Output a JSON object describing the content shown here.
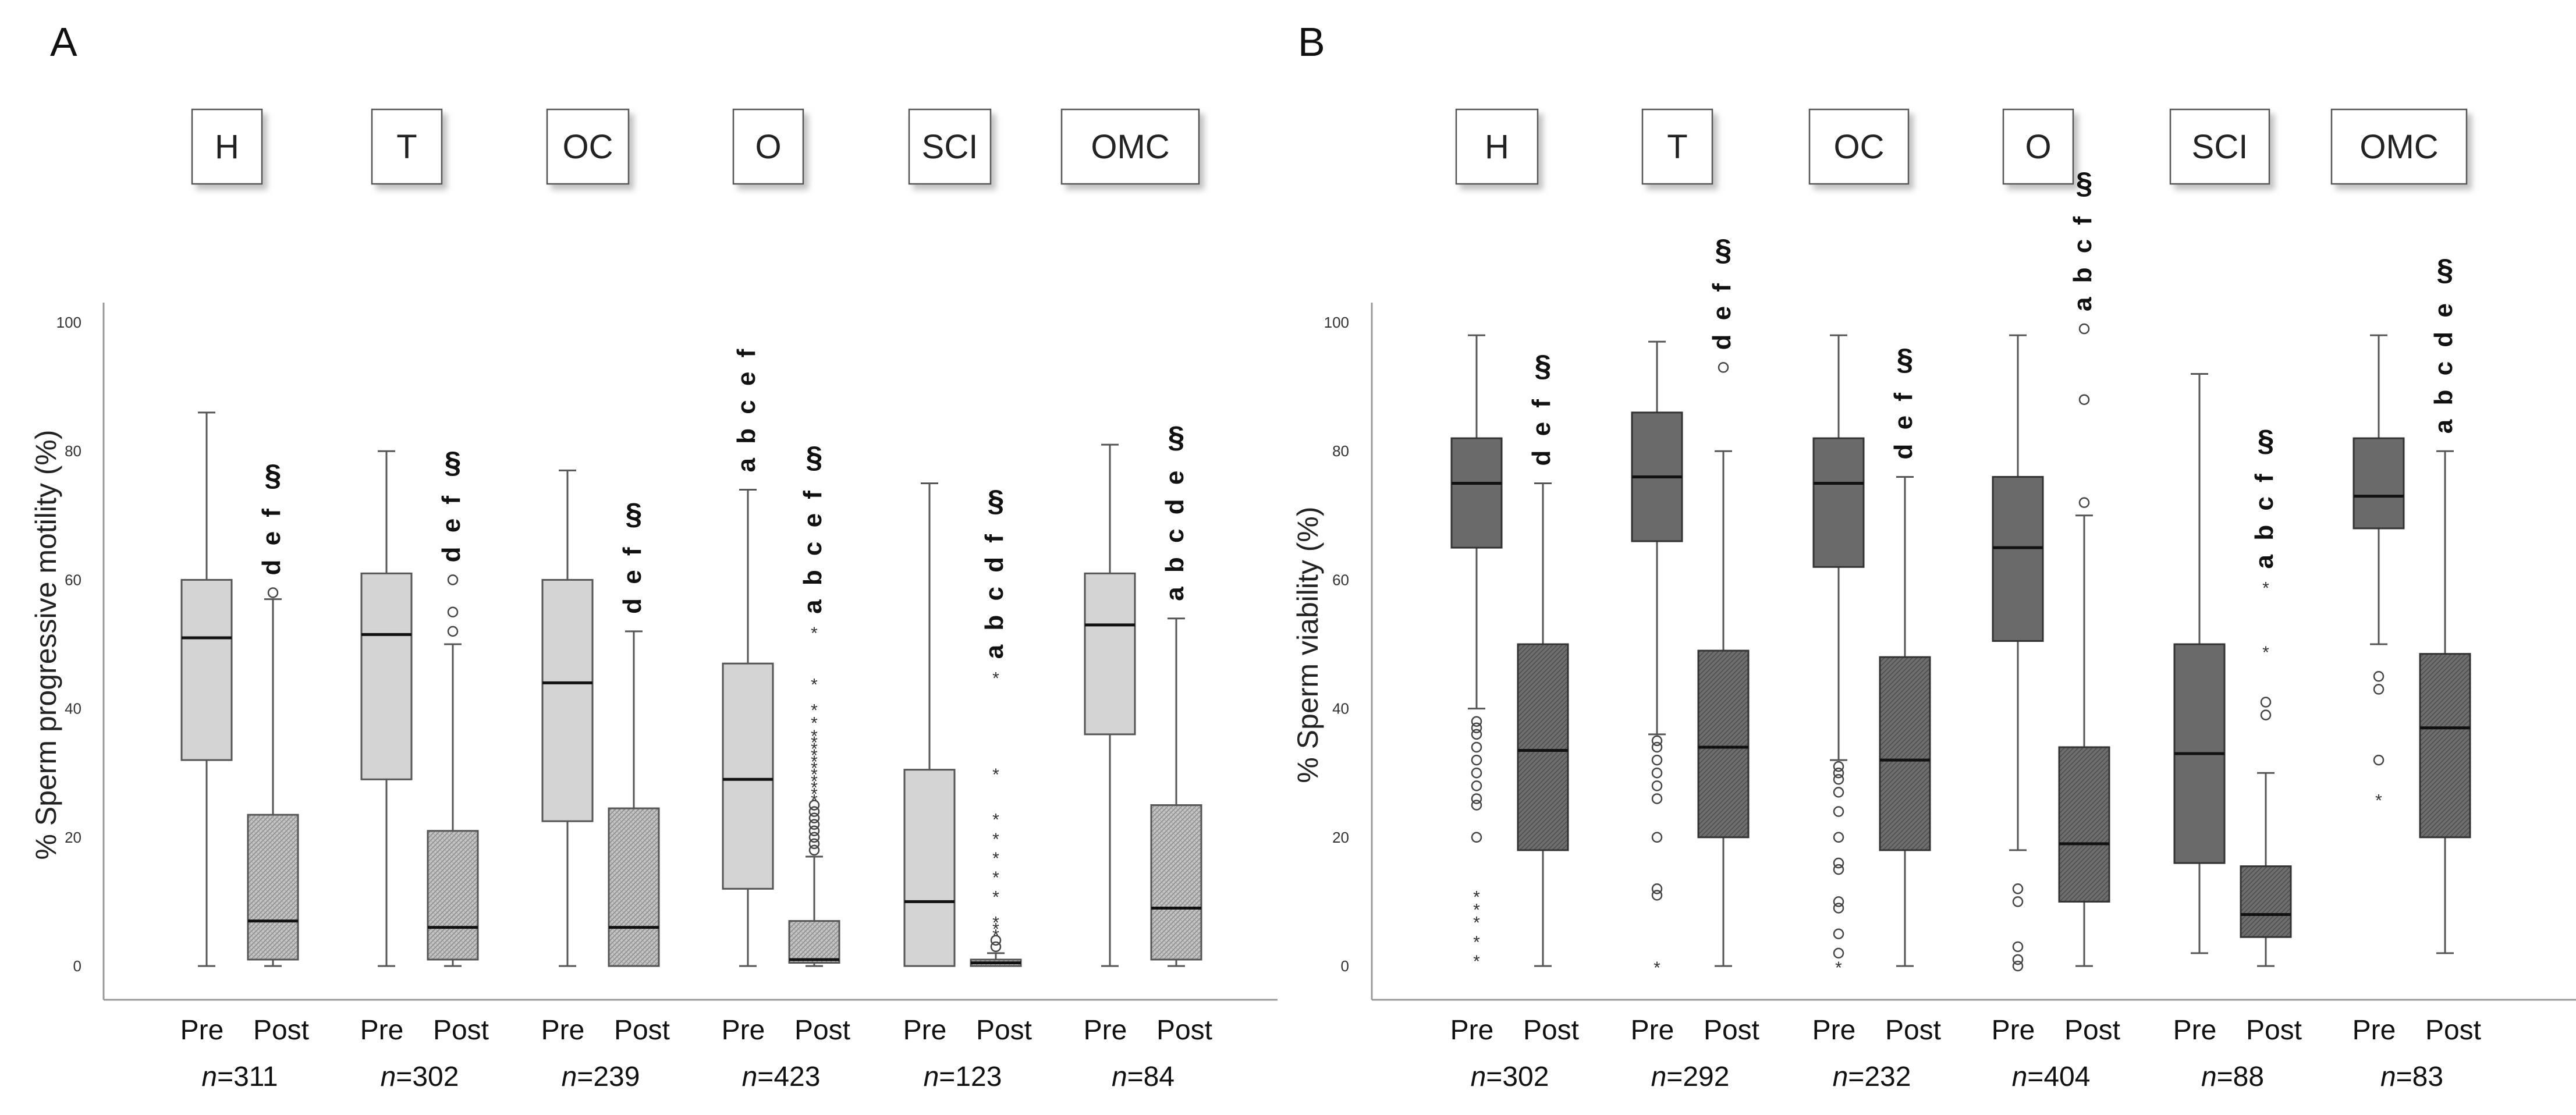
{
  "chart_data": [
    {
      "panel_label": "A",
      "type": "box",
      "ylabel": "% Sperm progressive motility (%)",
      "ylim": [
        0,
        100
      ],
      "yticks": [
        "0",
        "20",
        "40",
        "60",
        "80",
        "100"
      ],
      "phase_labels": [
        "Pre",
        "Post"
      ],
      "fill_colors": {
        "pre": "#d4d4d4",
        "post": "#c2c2c2"
      },
      "groups": [
        {
          "name": "H",
          "n_label": "n=311",
          "pre": {
            "whisker_low": 0,
            "q1": 32,
            "median": 51,
            "q3": 60,
            "whisker_high": 86,
            "outliers_circle": [],
            "outliers_star": []
          },
          "post": {
            "whisker_low": 0,
            "q1": 1,
            "median": 7,
            "q3": 23.5,
            "whisker_high": 57,
            "outliers_circle": [
              58
            ],
            "outliers_star": []
          },
          "post_sig_letters": "d e f",
          "post_sig_symbol": "§"
        },
        {
          "name": "T",
          "n_label": "n=302",
          "pre": {
            "whisker_low": 0,
            "q1": 29,
            "median": 51.5,
            "q3": 61,
            "whisker_high": 80,
            "outliers_circle": [],
            "outliers_star": []
          },
          "post": {
            "whisker_low": 0,
            "q1": 1,
            "median": 6,
            "q3": 21,
            "whisker_high": 50,
            "outliers_circle": [
              52,
              55,
              60
            ],
            "outliers_star": []
          },
          "post_sig_letters": "d e f",
          "post_sig_symbol": "§"
        },
        {
          "name": "OC",
          "n_label": "n=239",
          "pre": {
            "whisker_low": 0,
            "q1": 22.5,
            "median": 44,
            "q3": 60,
            "whisker_high": 77,
            "outliers_circle": [],
            "outliers_star": []
          },
          "post": {
            "whisker_low": 0,
            "q1": 0,
            "median": 6,
            "q3": 24.5,
            "whisker_high": 52,
            "outliers_circle": [],
            "outliers_star": []
          },
          "post_sig_letters": "d e f",
          "post_sig_symbol": "§"
        },
        {
          "name": "O",
          "n_label": "n=423",
          "pre": {
            "whisker_low": 0,
            "q1": 12,
            "median": 29,
            "q3": 47,
            "whisker_high": 74,
            "outliers_circle": [],
            "outliers_star": []
          },
          "post": {
            "whisker_low": 0,
            "q1": 0.5,
            "median": 1,
            "q3": 7,
            "whisker_high": 17,
            "outliers_circle": [
              18,
              19,
              20,
              21,
              22,
              23,
              24,
              25
            ],
            "outliers_star": [
              26,
              27,
              28,
              29,
              30,
              31,
              32,
              33,
              34,
              35,
              36,
              38,
              40,
              44,
              52
            ]
          },
          "pre_sig_letters": "a b c e f",
          "post_sig_letters": "a b c e f",
          "post_sig_symbol": "§"
        },
        {
          "name": "SCI",
          "n_label": "n=123",
          "pre": {
            "whisker_low": 0,
            "q1": 0,
            "median": 10,
            "q3": 30.5,
            "whisker_high": 75,
            "outliers_circle": [],
            "outliers_star": []
          },
          "post": {
            "whisker_low": 0,
            "q1": 0,
            "median": 0.5,
            "q3": 1,
            "whisker_high": 2,
            "outliers_circle": [
              3,
              4
            ],
            "outliers_star": [
              5,
              6,
              7,
              11,
              14,
              17,
              20,
              23,
              30,
              45
            ]
          },
          "post_sig_letters": "a b c d f",
          "post_sig_symbol": "§"
        },
        {
          "name": "OMC",
          "n_label": "n=84",
          "pre": {
            "whisker_low": 0,
            "q1": 36,
            "median": 53,
            "q3": 61,
            "whisker_high": 81,
            "outliers_circle": [],
            "outliers_star": []
          },
          "post": {
            "whisker_low": 0,
            "q1": 1,
            "median": 9,
            "q3": 25,
            "whisker_high": 54,
            "outliers_circle": [],
            "outliers_star": []
          },
          "post_sig_letters": "a b c d e",
          "post_sig_symbol": "§"
        }
      ]
    },
    {
      "panel_label": "B",
      "type": "box",
      "ylabel": "% Sperm viability (%)",
      "ylim": [
        0,
        100
      ],
      "yticks": [
        "0",
        "20",
        "40",
        "60",
        "80",
        "100"
      ],
      "phase_labels": [
        "Pre",
        "Post"
      ],
      "fill_colors": {
        "pre": "#6a6a6a",
        "post": "#6f6f6f"
      },
      "groups": [
        {
          "name": "H",
          "n_label": "n=302",
          "pre": {
            "whisker_low": 40,
            "q1": 65,
            "median": 75,
            "q3": 82,
            "whisker_high": 98,
            "outliers_circle": [
              20,
              25,
              26,
              28,
              30,
              32,
              34,
              36,
              37,
              38
            ],
            "outliers_star": [
              1,
              4,
              7,
              9,
              11
            ]
          },
          "post": {
            "whisker_low": 0,
            "q1": 18,
            "median": 33.5,
            "q3": 50,
            "whisker_high": 75,
            "outliers_circle": [],
            "outliers_star": []
          },
          "post_sig_letters": "d e f",
          "post_sig_symbol": "§"
        },
        {
          "name": "T",
          "n_label": "n=292",
          "pre": {
            "whisker_low": 36,
            "q1": 66,
            "median": 76,
            "q3": 86,
            "whisker_high": 97,
            "outliers_circle": [
              11,
              12,
              20,
              26,
              28,
              30,
              32,
              34,
              35
            ],
            "outliers_star": [
              0
            ]
          },
          "post": {
            "whisker_low": 0,
            "q1": 20,
            "median": 34,
            "q3": 49,
            "whisker_high": 80,
            "outliers_circle": [
              93
            ],
            "outliers_star": []
          },
          "post_sig_letters": "d e f",
          "post_sig_symbol": "§"
        },
        {
          "name": "OC",
          "n_label": "n=232",
          "pre": {
            "whisker_low": 32,
            "q1": 62,
            "median": 75,
            "q3": 82,
            "whisker_high": 98,
            "outliers_circle": [
              2,
              5,
              9,
              10,
              15,
              16,
              20,
              24,
              27,
              29,
              30,
              31
            ],
            "outliers_star": [
              0
            ]
          },
          "post": {
            "whisker_low": 0,
            "q1": 18,
            "median": 32,
            "q3": 48,
            "whisker_high": 76,
            "outliers_circle": [],
            "outliers_star": []
          },
          "post_sig_letters": "d e f",
          "post_sig_symbol": "§"
        },
        {
          "name": "O",
          "n_label": "n=404",
          "pre": {
            "whisker_low": 18,
            "q1": 50.5,
            "median": 65,
            "q3": 76,
            "whisker_high": 98,
            "outliers_circle": [
              0,
              1,
              3,
              10,
              12
            ],
            "outliers_star": []
          },
          "post": {
            "whisker_low": 0,
            "q1": 10,
            "median": 19,
            "q3": 34,
            "whisker_high": 70,
            "outliers_circle": [
              72,
              88,
              99
            ],
            "outliers_star": []
          },
          "post_sig_letters": "a b c f",
          "post_sig_symbol": "§"
        },
        {
          "name": "SCI",
          "n_label": "n=88",
          "pre": {
            "whisker_low": 2,
            "q1": 16,
            "median": 33,
            "q3": 50,
            "whisker_high": 92,
            "outliers_circle": [],
            "outliers_star": []
          },
          "post": {
            "whisker_low": 0,
            "q1": 4.5,
            "median": 8,
            "q3": 15.5,
            "whisker_high": 30,
            "outliers_circle": [
              39,
              41
            ],
            "outliers_star": [
              49,
              59
            ]
          },
          "post_sig_letters": "a b c f",
          "post_sig_symbol": "§"
        },
        {
          "name": "OMC",
          "n_label": "n=83",
          "pre": {
            "whisker_low": 50,
            "q1": 68,
            "median": 73,
            "q3": 82,
            "whisker_high": 98,
            "outliers_circle": [
              32,
              43,
              45
            ],
            "outliers_star": [
              26
            ]
          },
          "post": {
            "whisker_low": 2,
            "q1": 20,
            "median": 37,
            "q3": 48.5,
            "whisker_high": 80,
            "outliers_circle": [],
            "outliers_star": []
          },
          "post_sig_letters": "a b c d e",
          "post_sig_symbol": "§"
        }
      ]
    }
  ]
}
